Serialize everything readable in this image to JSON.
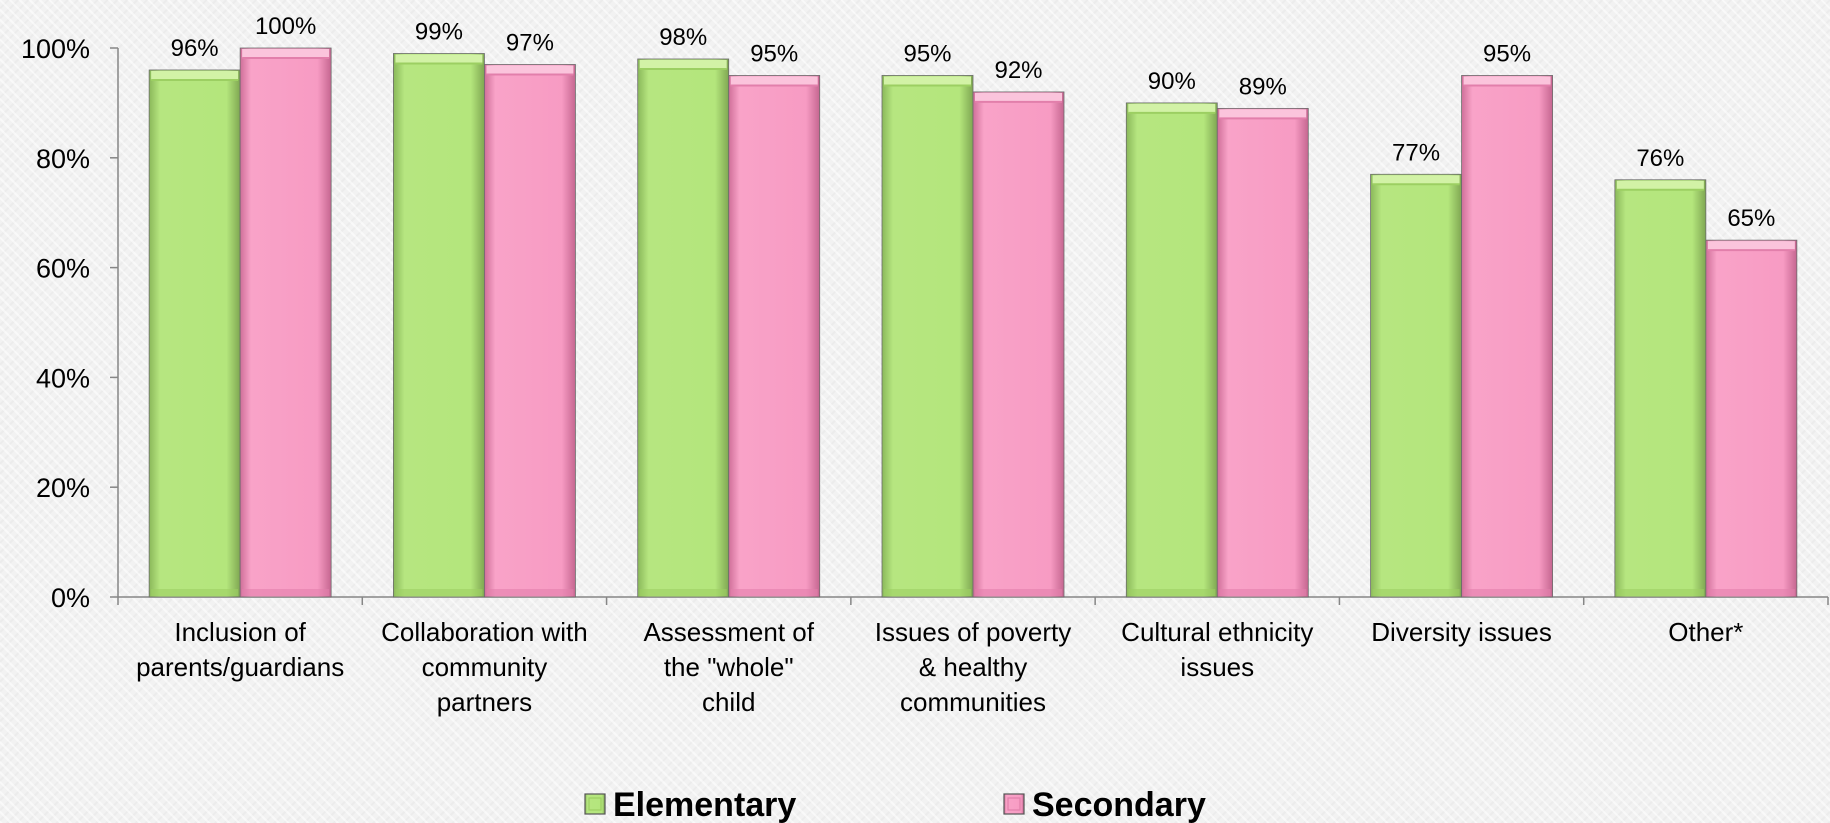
{
  "chart_data": {
    "type": "bar",
    "categories": [
      [
        "Inclusion of",
        "parents/guardians"
      ],
      [
        "Collaboration with",
        "community",
        "partners"
      ],
      [
        "Assessment of",
        "the \"whole\"",
        "child"
      ],
      [
        "Issues of poverty",
        "& healthy",
        "communities"
      ],
      [
        "Cultural ethnicity",
        "issues"
      ],
      [
        "Diversity issues"
      ],
      [
        "Other*"
      ]
    ],
    "series": [
      {
        "name": "Elementary",
        "color": "#b4e67c",
        "values": [
          96,
          99,
          98,
          95,
          90,
          77,
          76
        ],
        "labels": [
          "96%",
          "99%",
          "98%",
          "95%",
          "90%",
          "77%",
          "76%"
        ]
      },
      {
        "name": "Secondary",
        "color": "#f79bc3",
        "values": [
          100,
          97,
          95,
          92,
          89,
          95,
          65
        ],
        "labels": [
          "100%",
          "97%",
          "95%",
          "92%",
          "89%",
          "95%",
          "65%"
        ]
      }
    ],
    "yticks": [
      "0%",
      "20%",
      "40%",
      "60%",
      "80%",
      "100%"
    ],
    "ylim": [
      0,
      100
    ],
    "grid": false,
    "legend_position": "bottom"
  }
}
